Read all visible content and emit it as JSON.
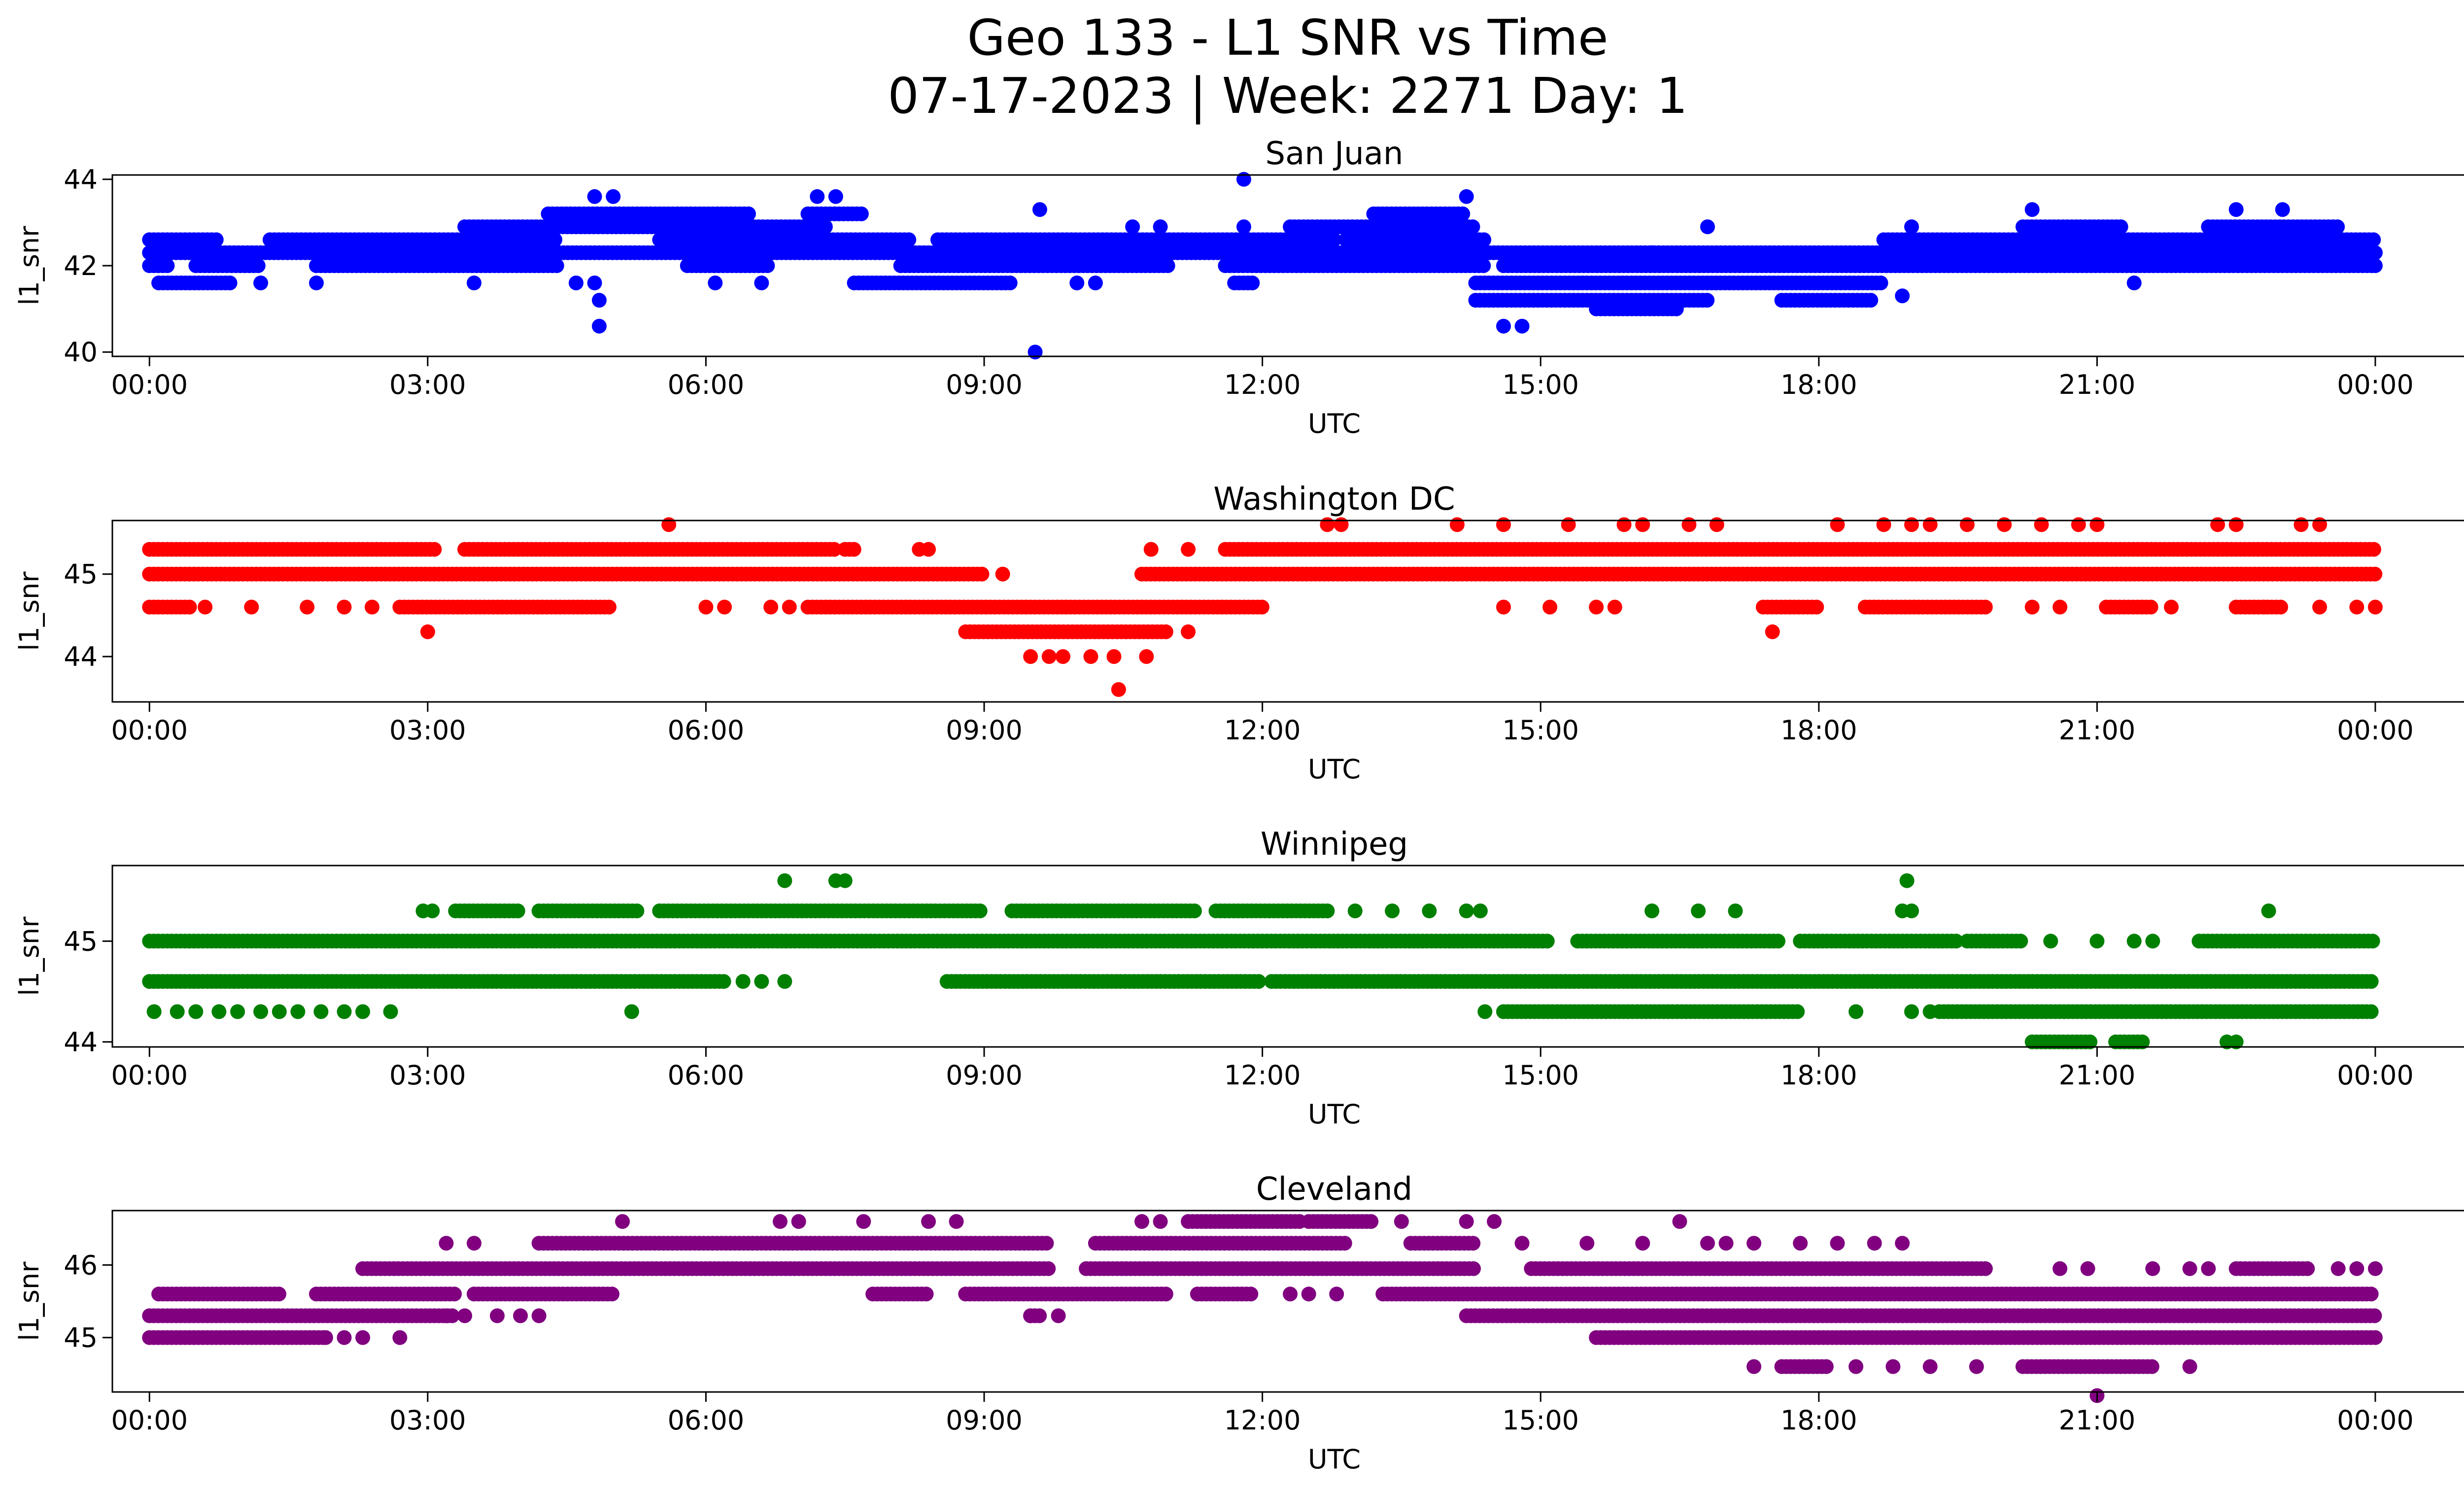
{
  "figure": {
    "title_line1": "Geo 133 - L1 SNR vs Time",
    "title_line2": "07-17-2023 | Week: 2271 Day: 1"
  },
  "chart_data": [
    {
      "type": "scatter",
      "title": "San Juan",
      "xlabel": "UTC",
      "ylabel": "l1_snr",
      "color": "#0000ff",
      "xlim": [
        -0.4,
        25.95
      ],
      "ylim": [
        39.9,
        44.1
      ],
      "xticks": [
        "00:00",
        "03:00",
        "06:00",
        "09:00",
        "12:00",
        "15:00",
        "18:00",
        "21:00",
        "00:00"
      ],
      "yticks": [
        40,
        42,
        44
      ],
      "levels": [
        {
          "y": 42.3,
          "ranges": [
            [
              0,
              24
            ]
          ]
        },
        {
          "y": 42.6,
          "ranges": [
            [
              0,
              0.75
            ],
            [
              1.3,
              4.4
            ],
            [
              5.5,
              8.2
            ],
            [
              8.5,
              12.8
            ],
            [
              12.9,
              14.4
            ],
            [
              18.7,
              24
            ]
          ]
        },
        {
          "y": 42.0,
          "ranges": [
            [
              0,
              0.2
            ],
            [
              0.5,
              1.2
            ],
            [
              1.8,
              4.4
            ],
            [
              5.8,
              6.7
            ],
            [
              8.1,
              11.0
            ],
            [
              11.6,
              14.4
            ],
            [
              14.6,
              24
            ]
          ]
        },
        {
          "y": 42.9,
          "ranges": [
            [
              3.4,
              7.3
            ],
            [
              12.3,
              14.3
            ],
            [
              20.2,
              21.3
            ],
            [
              22.2,
              23.6
            ]
          ]
        },
        {
          "y": 43.2,
          "ranges": [
            [
              4.3,
              6.5
            ],
            [
              7.1,
              7.7
            ],
            [
              13.2,
              14.2
            ]
          ]
        },
        {
          "y": 41.6,
          "ranges": [
            [
              0.1,
              0.9
            ],
            [
              7.6,
              9.3
            ],
            [
              11.7,
              11.9
            ],
            [
              14.3,
              18.7
            ]
          ]
        },
        {
          "y": 41.2,
          "ranges": [
            [
              14.3,
              16.8
            ],
            [
              17.6,
              18.6
            ]
          ]
        },
        {
          "y": 41.0,
          "ranges": [
            [
              15.6,
              16.5
            ]
          ]
        }
      ],
      "extra_points": [
        [
          1.2,
          41.6
        ],
        [
          1.8,
          41.6
        ],
        [
          3.5,
          41.6
        ],
        [
          4.6,
          41.6
        ],
        [
          4.8,
          41.6
        ],
        [
          4.85,
          41.2
        ],
        [
          4.85,
          40.6
        ],
        [
          4.8,
          43.6
        ],
        [
          5.0,
          43.6
        ],
        [
          7.2,
          43.6
        ],
        [
          7.4,
          43.6
        ],
        [
          6.1,
          41.6
        ],
        [
          6.6,
          41.6
        ],
        [
          9.6,
          43.3
        ],
        [
          9.55,
          40.0
        ],
        [
          10.0,
          41.6
        ],
        [
          10.2,
          41.6
        ],
        [
          10.6,
          42.9
        ],
        [
          10.9,
          42.9
        ],
        [
          11.8,
          44.0
        ],
        [
          11.8,
          42.9
        ],
        [
          14.2,
          43.6
        ],
        [
          14.6,
          40.6
        ],
        [
          14.8,
          40.6
        ],
        [
          16.2,
          42.3
        ],
        [
          16.8,
          42.9
        ],
        [
          18.9,
          41.3
        ],
        [
          19.0,
          42.9
        ],
        [
          20.3,
          43.3
        ],
        [
          21.4,
          41.6
        ],
        [
          22.5,
          43.3
        ],
        [
          23.0,
          43.3
        ],
        [
          24.0,
          42.0
        ]
      ]
    },
    {
      "type": "scatter",
      "title": "Washington DC",
      "xlabel": "UTC",
      "ylabel": "l1_snr",
      "color": "#ff0000",
      "xlim": [
        -0.4,
        25.95
      ],
      "ylim": [
        43.45,
        45.65
      ],
      "xticks": [
        "00:00",
        "03:00",
        "06:00",
        "09:00",
        "12:00",
        "15:00",
        "18:00",
        "21:00",
        "00:00"
      ],
      "yticks": [
        44,
        45
      ],
      "levels": [
        {
          "y": 45.0,
          "ranges": [
            [
              0,
              9.0
            ],
            [
              10.7,
              24
            ]
          ]
        },
        {
          "y": 45.3,
          "ranges": [
            [
              0,
              3.1
            ],
            [
              3.4,
              7.4
            ],
            [
              7.5,
              7.6
            ],
            [
              11.6,
              24
            ]
          ]
        },
        {
          "y": 44.6,
          "ranges": [
            [
              0,
              0.45
            ],
            [
              2.7,
              5.0
            ],
            [
              7.1,
              12.0
            ],
            [
              17.4,
              18.0
            ],
            [
              18.5,
              19.8
            ],
            [
              21.1,
              21.6
            ],
            [
              22.5,
              23.0
            ]
          ]
        },
        {
          "y": 44.3,
          "ranges": [
            [
              8.8,
              11.0
            ]
          ]
        }
      ],
      "extra_points": [
        [
          5.6,
          45.6
        ],
        [
          8.3,
          45.3
        ],
        [
          8.4,
          45.3
        ],
        [
          9.2,
          45.0
        ],
        [
          10.8,
          45.3
        ],
        [
          11.2,
          45.3
        ],
        [
          0.6,
          44.6
        ],
        [
          1.1,
          44.6
        ],
        [
          1.7,
          44.6
        ],
        [
          2.1,
          44.6
        ],
        [
          2.4,
          44.6
        ],
        [
          6.0,
          44.6
        ],
        [
          6.2,
          44.6
        ],
        [
          6.7,
          44.6
        ],
        [
          6.9,
          44.6
        ],
        [
          3.0,
          44.3
        ],
        [
          11.2,
          44.3
        ],
        [
          9.5,
          44.0
        ],
        [
          9.7,
          44.0
        ],
        [
          9.85,
          44.0
        ],
        [
          10.15,
          44.0
        ],
        [
          10.4,
          44.0
        ],
        [
          10.75,
          44.0
        ],
        [
          10.45,
          43.6
        ],
        [
          12.7,
          45.6
        ],
        [
          12.85,
          45.6
        ],
        [
          14.1,
          45.6
        ],
        [
          14.6,
          45.6
        ],
        [
          15.3,
          45.6
        ],
        [
          15.9,
          45.6
        ],
        [
          16.1,
          45.6
        ],
        [
          16.6,
          45.6
        ],
        [
          16.9,
          45.6
        ],
        [
          18.2,
          45.6
        ],
        [
          18.7,
          45.6
        ],
        [
          19.0,
          45.6
        ],
        [
          19.2,
          45.6
        ],
        [
          19.6,
          45.6
        ],
        [
          20.0,
          45.6
        ],
        [
          20.4,
          45.6
        ],
        [
          20.8,
          45.6
        ],
        [
          21.0,
          45.6
        ],
        [
          22.3,
          45.6
        ],
        [
          22.5,
          45.6
        ],
        [
          23.2,
          45.6
        ],
        [
          23.4,
          45.6
        ],
        [
          14.6,
          44.6
        ],
        [
          15.1,
          44.6
        ],
        [
          15.6,
          44.6
        ],
        [
          15.8,
          44.6
        ],
        [
          17.5,
          44.3
        ],
        [
          20.3,
          44.6
        ],
        [
          20.6,
          44.6
        ],
        [
          21.8,
          44.6
        ],
        [
          22.8,
          44.6
        ],
        [
          23.4,
          44.6
        ],
        [
          23.8,
          44.6
        ],
        [
          24.0,
          44.6
        ]
      ]
    },
    {
      "type": "scatter",
      "title": "Winnipeg",
      "xlabel": "UTC",
      "ylabel": "l1_snr",
      "color": "#008000",
      "xlim": [
        -0.4,
        25.95
      ],
      "ylim": [
        43.95,
        45.75
      ],
      "xticks": [
        "00:00",
        "03:00",
        "06:00",
        "09:00",
        "12:00",
        "15:00",
        "18:00",
        "21:00",
        "00:00"
      ],
      "yticks": [
        44,
        45
      ],
      "levels": [
        {
          "y": 45.0,
          "ranges": [
            [
              0,
              15.1
            ],
            [
              15.4,
              17.6
            ],
            [
              17.8,
              19.5
            ],
            [
              19.6,
              20.2
            ],
            [
              22.1,
              24
            ]
          ]
        },
        {
          "y": 44.6,
          "ranges": [
            [
              0,
              6.2
            ],
            [
              8.6,
              12.0
            ],
            [
              12.1,
              24
            ]
          ]
        },
        {
          "y": 45.3,
          "ranges": [
            [
              3.3,
              4.0
            ],
            [
              4.2,
              5.3
            ],
            [
              5.5,
              9.0
            ],
            [
              9.3,
              11.3
            ],
            [
              11.5,
              12.7
            ]
          ]
        },
        {
          "y": 44.3,
          "ranges": [
            [
              14.6,
              17.8
            ],
            [
              19.3,
              24
            ]
          ]
        },
        {
          "y": 44.0,
          "ranges": [
            [
              20.3,
              20.95
            ],
            [
              21.2,
              21.5
            ]
          ]
        }
      ],
      "extra_points": [
        [
          0.05,
          44.3
        ],
        [
          0.3,
          44.3
        ],
        [
          0.5,
          44.3
        ],
        [
          0.75,
          44.3
        ],
        [
          0.95,
          44.3
        ],
        [
          1.2,
          44.3
        ],
        [
          1.4,
          44.3
        ],
        [
          1.6,
          44.3
        ],
        [
          1.85,
          44.3
        ],
        [
          2.1,
          44.3
        ],
        [
          2.3,
          44.3
        ],
        [
          2.6,
          44.3
        ],
        [
          2.95,
          45.3
        ],
        [
          3.05,
          45.3
        ],
        [
          5.5,
          45.3
        ],
        [
          5.2,
          44.3
        ],
        [
          6.4,
          44.6
        ],
        [
          6.6,
          44.6
        ],
        [
          6.85,
          44.6
        ],
        [
          6.85,
          45.6
        ],
        [
          7.4,
          45.6
        ],
        [
          7.5,
          45.6
        ],
        [
          13.0,
          45.3
        ],
        [
          13.4,
          45.3
        ],
        [
          13.8,
          45.3
        ],
        [
          14.2,
          45.3
        ],
        [
          14.35,
          45.3
        ],
        [
          14.4,
          44.3
        ],
        [
          16.2,
          45.3
        ],
        [
          16.7,
          45.3
        ],
        [
          17.1,
          45.3
        ],
        [
          18.9,
          45.3
        ],
        [
          19.0,
          45.3
        ],
        [
          18.95,
          45.6
        ],
        [
          19.0,
          44.3
        ],
        [
          19.2,
          44.3
        ],
        [
          18.4,
          44.3
        ],
        [
          20.5,
          45.0
        ],
        [
          21.0,
          45.0
        ],
        [
          21.4,
          45.0
        ],
        [
          21.6,
          45.0
        ],
        [
          22.85,
          45.3
        ],
        [
          22.4,
          44.0
        ],
        [
          22.5,
          44.0
        ]
      ]
    },
    {
      "type": "scatter",
      "title": "Cleveland",
      "xlabel": "UTC",
      "ylabel": "l1_snr",
      "color": "#800080",
      "xlim": [
        -0.4,
        25.95
      ],
      "ylim": [
        44.25,
        46.75
      ],
      "xticks": [
        "00:00",
        "03:00",
        "06:00",
        "09:00",
        "12:00",
        "15:00",
        "18:00",
        "21:00",
        "00:00"
      ],
      "yticks": [
        45,
        46
      ],
      "levels": [
        {
          "y": 45.3,
          "ranges": [
            [
              0,
              3.3
            ],
            [
              9.5,
              9.6
            ],
            [
              14.2,
              24
            ]
          ]
        },
        {
          "y": 45.6,
          "ranges": [
            [
              0.1,
              1.4
            ],
            [
              1.8,
              3.3
            ],
            [
              3.5,
              5.0
            ],
            [
              7.8,
              8.4
            ],
            [
              8.8,
              11.0
            ],
            [
              11.3,
              11.9
            ],
            [
              13.3,
              24
            ]
          ]
        },
        {
          "y": 45.95,
          "ranges": [
            [
              2.3,
              9.7
            ],
            [
              10.1,
              14.3
            ],
            [
              14.9,
              19.8
            ],
            [
              22.5,
              23.3
            ]
          ]
        },
        {
          "y": 46.3,
          "ranges": [
            [
              4.2,
              9.7
            ],
            [
              10.2,
              12.9
            ],
            [
              13.6,
              14.3
            ]
          ]
        },
        {
          "y": 46.6,
          "ranges": [
            [
              11.2,
              12.4
            ],
            [
              12.5,
              13.2
            ]
          ]
        },
        {
          "y": 45.0,
          "ranges": [
            [
              0,
              1.9
            ],
            [
              15.6,
              24
            ]
          ]
        },
        {
          "y": 44.6,
          "ranges": [
            [
              17.6,
              18.1
            ],
            [
              20.2,
              21.6
            ]
          ]
        }
      ],
      "extra_points": [
        [
          1.9,
          45.0
        ],
        [
          2.1,
          45.0
        ],
        [
          2.3,
          45.0
        ],
        [
          2.7,
          45.0
        ],
        [
          3.2,
          45.3
        ],
        [
          3.4,
          45.3
        ],
        [
          3.75,
          45.3
        ],
        [
          4.0,
          45.3
        ],
        [
          4.2,
          45.3
        ],
        [
          3.2,
          46.3
        ],
        [
          3.5,
          46.3
        ],
        [
          5.1,
          46.6
        ],
        [
          6.8,
          46.6
        ],
        [
          7.0,
          46.6
        ],
        [
          7.7,
          46.6
        ],
        [
          8.4,
          46.6
        ],
        [
          8.7,
          46.6
        ],
        [
          9.5,
          45.3
        ],
        [
          9.8,
          45.3
        ],
        [
          10.7,
          46.6
        ],
        [
          10.9,
          46.6
        ],
        [
          12.3,
          45.6
        ],
        [
          12.5,
          45.6
        ],
        [
          12.8,
          45.6
        ],
        [
          13.5,
          46.6
        ],
        [
          14.2,
          46.6
        ],
        [
          14.5,
          46.6
        ],
        [
          14.8,
          46.3
        ],
        [
          15.5,
          46.3
        ],
        [
          16.1,
          46.3
        ],
        [
          16.5,
          46.6
        ],
        [
          16.8,
          46.3
        ],
        [
          17.0,
          46.3
        ],
        [
          17.3,
          46.3
        ],
        [
          17.8,
          46.3
        ],
        [
          18.2,
          46.3
        ],
        [
          18.6,
          46.3
        ],
        [
          18.9,
          46.3
        ],
        [
          17.3,
          44.6
        ],
        [
          18.4,
          44.6
        ],
        [
          18.8,
          44.6
        ],
        [
          19.2,
          44.6
        ],
        [
          19.7,
          44.6
        ],
        [
          20.6,
          45.95
        ],
        [
          20.9,
          45.95
        ],
        [
          21.0,
          44.2
        ],
        [
          21.6,
          45.95
        ],
        [
          22.0,
          45.95
        ],
        [
          22.2,
          45.95
        ],
        [
          22.0,
          44.6
        ],
        [
          23.6,
          45.95
        ],
        [
          23.8,
          45.95
        ],
        [
          24.0,
          45.95
        ]
      ]
    }
  ]
}
